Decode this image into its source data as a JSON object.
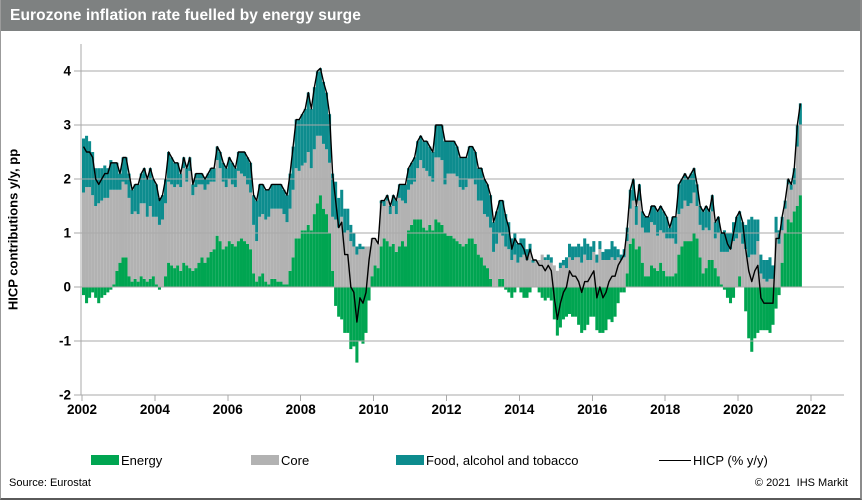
{
  "header": {
    "title": "Eurozone inflation rate fuelled by energy surge",
    "bar_color": "#7e8181",
    "title_color": "#ffffff"
  },
  "y_axis": {
    "label": "HICP contributions y/y, pp",
    "ticks": [
      4,
      3,
      2,
      1,
      0,
      -1,
      -2
    ],
    "min": -2,
    "max": 4
  },
  "x_axis": {
    "ticks": [
      2002,
      2004,
      2006,
      2008,
      2010,
      2012,
      2014,
      2016,
      2018,
      2020,
      2022
    ]
  },
  "legend": {
    "items": [
      {
        "label": "Energy",
        "color": "#00a551",
        "type": "box"
      },
      {
        "label": "Core",
        "color": "#b2b2b2",
        "type": "box"
      },
      {
        "label": "Food, alcohol and tobacco",
        "color": "#0d8c8e",
        "type": "box"
      },
      {
        "label": "HICP (% y/y)",
        "color": "#000000",
        "type": "line"
      }
    ]
  },
  "footer": {
    "source": "Source: Eurostat",
    "copyright": "© 2021  IHS Markit"
  },
  "colors": {
    "grid": "#a9a9a9",
    "axis": "#7a7a7a",
    "line": "#000000",
    "energy": "#00a551",
    "core": "#b2b2b2",
    "food": "#0d8c8e"
  },
  "chart_data": {
    "type": "bar",
    "subtype": "stacked-monthly-bars-with-line",
    "title": "Eurozone inflation rate fuelled by energy surge",
    "ylabel": "HICP contributions y/y, pp",
    "ylim": [
      -2,
      4
    ],
    "x_start": "2002-01",
    "x_end": "2021-09",
    "frequency": "monthly",
    "legend_position": "bottom",
    "grid": "horizontal-over-bars",
    "series": [
      {
        "name": "Energy",
        "color": "#00a551",
        "values": [
          -0.15,
          -0.3,
          -0.2,
          -0.1,
          -0.2,
          -0.3,
          -0.2,
          -0.15,
          -0.1,
          -0.05,
          0.05,
          0.3,
          0.45,
          0.55,
          0.55,
          0.2,
          0.1,
          0.15,
          0.1,
          0.2,
          0.15,
          0.1,
          0.15,
          0.2,
          0.05,
          -0.05,
          0,
          0.2,
          0.45,
          0.4,
          0.35,
          0.4,
          0.3,
          0.45,
          0.4,
          0.35,
          0.3,
          0.35,
          0.45,
          0.55,
          0.45,
          0.55,
          0.65,
          0.7,
          0.95,
          0.85,
          0.7,
          0.75,
          0.85,
          0.8,
          0.75,
          0.85,
          0.9,
          0.85,
          0.8,
          0.7,
          0.25,
          0.1,
          0.2,
          0.25,
          0.1,
          0.05,
          0.15,
          0.15,
          0.1,
          0.1,
          0.05,
          0.05,
          0.3,
          0.55,
          0.9,
          0.9,
          1.05,
          1.05,
          1.15,
          1.05,
          1.35,
          1.55,
          1.7,
          1.45,
          1.35,
          1,
          0.3,
          -0.35,
          -0.55,
          -0.6,
          -0.85,
          -0.85,
          -1.15,
          -1.1,
          -1.4,
          -1,
          -1.05,
          -0.85,
          -0.25,
          0.2,
          0.4,
          0.35,
          0.75,
          0.9,
          0.85,
          0.75,
          0.8,
          0.65,
          0.75,
          0.85,
          0.75,
          1.05,
          1.15,
          1.25,
          1.25,
          1.25,
          1.1,
          1.05,
          1.15,
          1.05,
          1.25,
          1.2,
          1.15,
          1,
          0.95,
          0.95,
          0.9,
          0.85,
          0.8,
          0.75,
          0.8,
          0.9,
          0.9,
          0.8,
          0.6,
          0.55,
          0.4,
          0.35,
          0.15,
          0,
          0,
          0.15,
          0.15,
          -0.05,
          -0.1,
          -0.2,
          -0.1,
          0,
          -0.1,
          -0.2,
          -0.2,
          -0.1,
          0,
          0,
          -0.1,
          -0.2,
          -0.25,
          -0.2,
          -0.25,
          -0.6,
          -0.9,
          -0.75,
          -0.6,
          -0.55,
          -0.5,
          -0.55,
          -0.55,
          -0.7,
          -0.85,
          -0.8,
          -0.7,
          -0.55,
          -0.55,
          -0.8,
          -0.85,
          -0.85,
          -0.8,
          -0.6,
          -0.65,
          -0.55,
          -0.3,
          -0.1,
          -0.1,
          0.25,
          0.8,
          0.9,
          0.7,
          0.75,
          0.45,
          0.2,
          0.2,
          0.4,
          0.35,
          0.3,
          0.45,
          0.3,
          0.2,
          0.2,
          0.2,
          0.25,
          0.6,
          0.75,
          0.85,
          0.85,
          0.85,
          1,
          0.9,
          0.55,
          0.25,
          0.35,
          0.5,
          0.5,
          0.35,
          0.2,
          0.05,
          -0.05,
          -0.2,
          -0.3,
          -0.2,
          0,
          0.2,
          0,
          -0.45,
          -0.95,
          -1.2,
          -0.95,
          -0.85,
          -0.8,
          -0.8,
          -0.8,
          -0.85,
          -0.7,
          -0.4,
          -0.15,
          0.45,
          1,
          1.25,
          1.2,
          1.4,
          1.5,
          1.7
        ]
      },
      {
        "name": "Core",
        "color": "#b2b2b2",
        "values": [
          1.75,
          1.85,
          1.85,
          1.7,
          1.5,
          1.55,
          1.6,
          1.65,
          1.65,
          1.8,
          1.75,
          1.5,
          1.35,
          1.4,
          1.35,
          1.45,
          1.25,
          1.25,
          1.25,
          1.35,
          1.4,
          1.2,
          1.35,
          1.1,
          1.25,
          1.15,
          1.25,
          1.35,
          1.5,
          1.5,
          1.5,
          1.5,
          1.55,
          1.75,
          1.55,
          1.8,
          1.4,
          1.5,
          1.45,
          1.35,
          1.35,
          1.35,
          1.3,
          1.25,
          1.4,
          1.35,
          1.25,
          1.1,
          1.15,
          1.1,
          1.1,
          1.3,
          1.2,
          1.2,
          1.1,
          1.05,
          0.9,
          0.75,
          1.1,
          1.1,
          1.15,
          1.25,
          1.3,
          1.3,
          1.35,
          1.35,
          1.3,
          1.15,
          1.15,
          1.25,
          1.3,
          1.25,
          1.2,
          1.25,
          1.35,
          1.15,
          1.2,
          1.25,
          1.1,
          1.2,
          1.2,
          1.3,
          1,
          1.25,
          1.1,
          1.3,
          1,
          1.05,
          0.85,
          0.75,
          0.6,
          0.7,
          0.7,
          0.75,
          0.75,
          0.7,
          0.5,
          0.45,
          0.8,
          0.6,
          0.75,
          0.6,
          0.7,
          0.7,
          0.9,
          0.75,
          0.8,
          0.75,
          0.75,
          0.7,
          0.95,
          1.1,
          1.1,
          1.1,
          0.9,
          0.9,
          1.15,
          1.2,
          1.2,
          0.9,
          1.15,
          1.15,
          1.2,
          1.2,
          1.05,
          1.05,
          1.05,
          1.1,
          1.1,
          1.1,
          1,
          1.05,
          0.95,
          0.95,
          0.95,
          0.65,
          0.8,
          0.85,
          0.8,
          0.75,
          0.7,
          0.5,
          0.6,
          0.45,
          0.55,
          0.6,
          0.5,
          0.65,
          0.45,
          0.5,
          0.5,
          0.6,
          0.5,
          0.5,
          0.45,
          0.4,
          0.3,
          0.35,
          0.4,
          0.35,
          0.55,
          0.5,
          0.55,
          0.55,
          0.45,
          0.6,
          0.5,
          0.5,
          0.65,
          0.45,
          0.7,
          0.5,
          0.5,
          0.5,
          0.55,
          0.5,
          0.55,
          0.5,
          0.55,
          0.6,
          0.65,
          0.7,
          0.45,
          0.85,
          0.65,
          0.8,
          0.8,
          0.8,
          0.8,
          0.65,
          0.6,
          0.7,
          0.7,
          0.7,
          0.7,
          0.55,
          0.75,
          0.7,
          0.75,
          0.65,
          0.7,
          0.75,
          0.6,
          0.6,
          0.8,
          0.75,
          0.55,
          0.9,
          0.55,
          0.8,
          0.6,
          0.65,
          0.65,
          0.7,
          0.85,
          0.9,
          0.8,
          0.8,
          0.7,
          0.55,
          0.6,
          0.6,
          0.85,
          0.25,
          0.15,
          0.1,
          0.15,
          0.15,
          1,
          0.8,
          0.6,
          0.45,
          0.65,
          0.6,
          0.5,
          1.1,
          1.3
        ]
      },
      {
        "name": "Food, alcohol and tobacco",
        "color": "#0d8c8e",
        "values": [
          1,
          0.95,
          0.85,
          0.8,
          0.7,
          0.65,
          0.6,
          0.6,
          0.55,
          0.55,
          0.5,
          0.5,
          0.3,
          0.45,
          0.5,
          0.45,
          0.45,
          0.5,
          0.55,
          0.55,
          0.65,
          0.7,
          0.7,
          0.7,
          0.6,
          0.5,
          0.45,
          0.45,
          0.55,
          0.5,
          0.45,
          0.4,
          0.25,
          0.2,
          0.25,
          0.25,
          0.2,
          0.25,
          0.2,
          0.2,
          0.2,
          0.2,
          0.25,
          0.25,
          0.25,
          0.3,
          0.35,
          0.35,
          0.4,
          0.4,
          0.35,
          0.35,
          0.4,
          0.45,
          0.5,
          0.55,
          0.55,
          0.75,
          0.6,
          0.55,
          0.55,
          0.5,
          0.45,
          0.45,
          0.45,
          0.45,
          0.45,
          0.5,
          0.65,
          0.8,
          0.9,
          0.95,
          0.95,
          1,
          1.1,
          1.1,
          1.15,
          1.2,
          1.25,
          1.15,
          1.05,
          0.9,
          0.8,
          0.7,
          0.55,
          0.5,
          0.45,
          0.4,
          0.3,
          0.25,
          0.15,
          0.1,
          0.05,
          0,
          0,
          0,
          0,
          0,
          0.05,
          0.1,
          0.1,
          0.15,
          0.2,
          0.25,
          0.25,
          0.3,
          0.35,
          0.4,
          0.4,
          0.45,
          0.5,
          0.45,
          0.5,
          0.55,
          0.55,
          0.55,
          0.6,
          0.6,
          0.65,
          0.8,
          0.6,
          0.6,
          0.6,
          0.55,
          0.55,
          0.6,
          0.55,
          0.6,
          0.6,
          0.6,
          0.6,
          0.6,
          0.65,
          0.6,
          0.6,
          0.55,
          0.6,
          0.6,
          0.65,
          0.6,
          0.5,
          0.4,
          0.4,
          0.35,
          0.35,
          0.3,
          0.2,
          0.15,
          0.05,
          0,
          0,
          0,
          0.05,
          0.1,
          0.1,
          0,
          0,
          0.1,
          0.1,
          0.2,
          0.25,
          0.25,
          0.2,
          0.25,
          0.3,
          0.3,
          0.3,
          0.25,
          0.2,
          0.15,
          0.15,
          0.15,
          0.2,
          0.2,
          0.3,
          0.25,
          0.15,
          0.1,
          0.15,
          0.25,
          0.35,
          0.4,
          0.35,
          0.3,
          0.3,
          0.3,
          0.3,
          0.3,
          0.35,
          0.45,
          0.45,
          0.4,
          0.4,
          0.2,
          0.4,
          0.5,
          0.55,
          0.55,
          0.5,
          0.5,
          0.55,
          0.45,
          0.4,
          0.35,
          0.35,
          0.4,
          0.35,
          0.3,
          0.3,
          0.3,
          0.35,
          0.4,
          0.35,
          0.3,
          0.35,
          0.4,
          0.4,
          0.4,
          0.45,
          0.7,
          0.7,
          0.65,
          0.4,
          0.35,
          0.35,
          0.4,
          0.4,
          0.25,
          0.3,
          0.25,
          0.25,
          0.15,
          0.1,
          0.1,
          0.3,
          0.4,
          0.4
        ]
      }
    ],
    "line": {
      "name": "HICP (% y/y)",
      "color": "#000000",
      "values": [
        2.6,
        2.5,
        2.5,
        2.4,
        2,
        1.9,
        2,
        2.1,
        2.1,
        2.3,
        2.3,
        2.3,
        2.1,
        2.4,
        2.4,
        2.1,
        1.8,
        1.9,
        1.9,
        2.1,
        2.2,
        2,
        2.2,
        2,
        1.9,
        1.6,
        1.7,
        2,
        2.5,
        2.4,
        2.3,
        2.3,
        2.1,
        2.4,
        2.2,
        2.4,
        1.9,
        2.1,
        2.1,
        2.1,
        2,
        2.1,
        2.2,
        2.2,
        2.6,
        2.5,
        2.3,
        2.2,
        2.4,
        2.3,
        2.2,
        2.5,
        2.5,
        2.5,
        2.4,
        2.3,
        1.7,
        1.6,
        1.9,
        1.9,
        1.8,
        1.8,
        1.9,
        1.9,
        1.9,
        1.9,
        1.8,
        1.7,
        2.1,
        2.6,
        3.1,
        3.1,
        3.2,
        3.3,
        3.6,
        3.3,
        3.7,
        4,
        4.05,
        3.8,
        3.6,
        3.2,
        2.1,
        1.6,
        1.1,
        1.2,
        0.6,
        0.6,
        0,
        -0.1,
        -0.65,
        -0.2,
        -0.3,
        -0.1,
        0.5,
        0.9,
        0.9,
        0.8,
        1.6,
        1.6,
        1.7,
        1.5,
        1.7,
        1.6,
        1.9,
        1.9,
        1.9,
        2.2,
        2.3,
        2.4,
        2.7,
        2.8,
        2.7,
        2.7,
        2.6,
        2.5,
        3,
        3,
        3,
        2.7,
        2.7,
        2.7,
        2.7,
        2.6,
        2.4,
        2.4,
        2.4,
        2.6,
        2.6,
        2.5,
        2.2,
        2.2,
        2,
        1.9,
        1.7,
        1.2,
        1.4,
        1.6,
        1.6,
        1.3,
        1.1,
        0.7,
        0.9,
        0.8,
        0.8,
        0.7,
        0.5,
        0.7,
        0.5,
        0.5,
        0.4,
        0.4,
        0.3,
        0.4,
        0.3,
        -0.2,
        -0.6,
        -0.3,
        -0.1,
        0,
        0.3,
        0.2,
        0.2,
        0.1,
        -0.1,
        0.1,
        0.1,
        0.2,
        0.3,
        -0.2,
        0,
        -0.2,
        -0.1,
        0.1,
        0.2,
        0.2,
        0.4,
        0.5,
        0.6,
        1.1,
        1.8,
        2,
        1.5,
        1.9,
        1.4,
        1.3,
        1.3,
        1.5,
        1.5,
        1.4,
        1.5,
        1.4,
        1.3,
        1.1,
        1.3,
        1.3,
        1.9,
        2,
        2.1,
        2,
        2.1,
        2.2,
        1.9,
        1.5,
        1.4,
        1.5,
        1.4,
        1.7,
        1.2,
        1.3,
        1,
        1,
        0.8,
        0.7,
        1,
        1.3,
        1.4,
        1.2,
        0.7,
        0.3,
        0.1,
        0.3,
        0.4,
        -0.2,
        -0.3,
        -0.3,
        -0.3,
        -0.3,
        0.9,
        0.9,
        1.3,
        1.6,
        2,
        1.9,
        2.2,
        3,
        3.4
      ]
    }
  }
}
